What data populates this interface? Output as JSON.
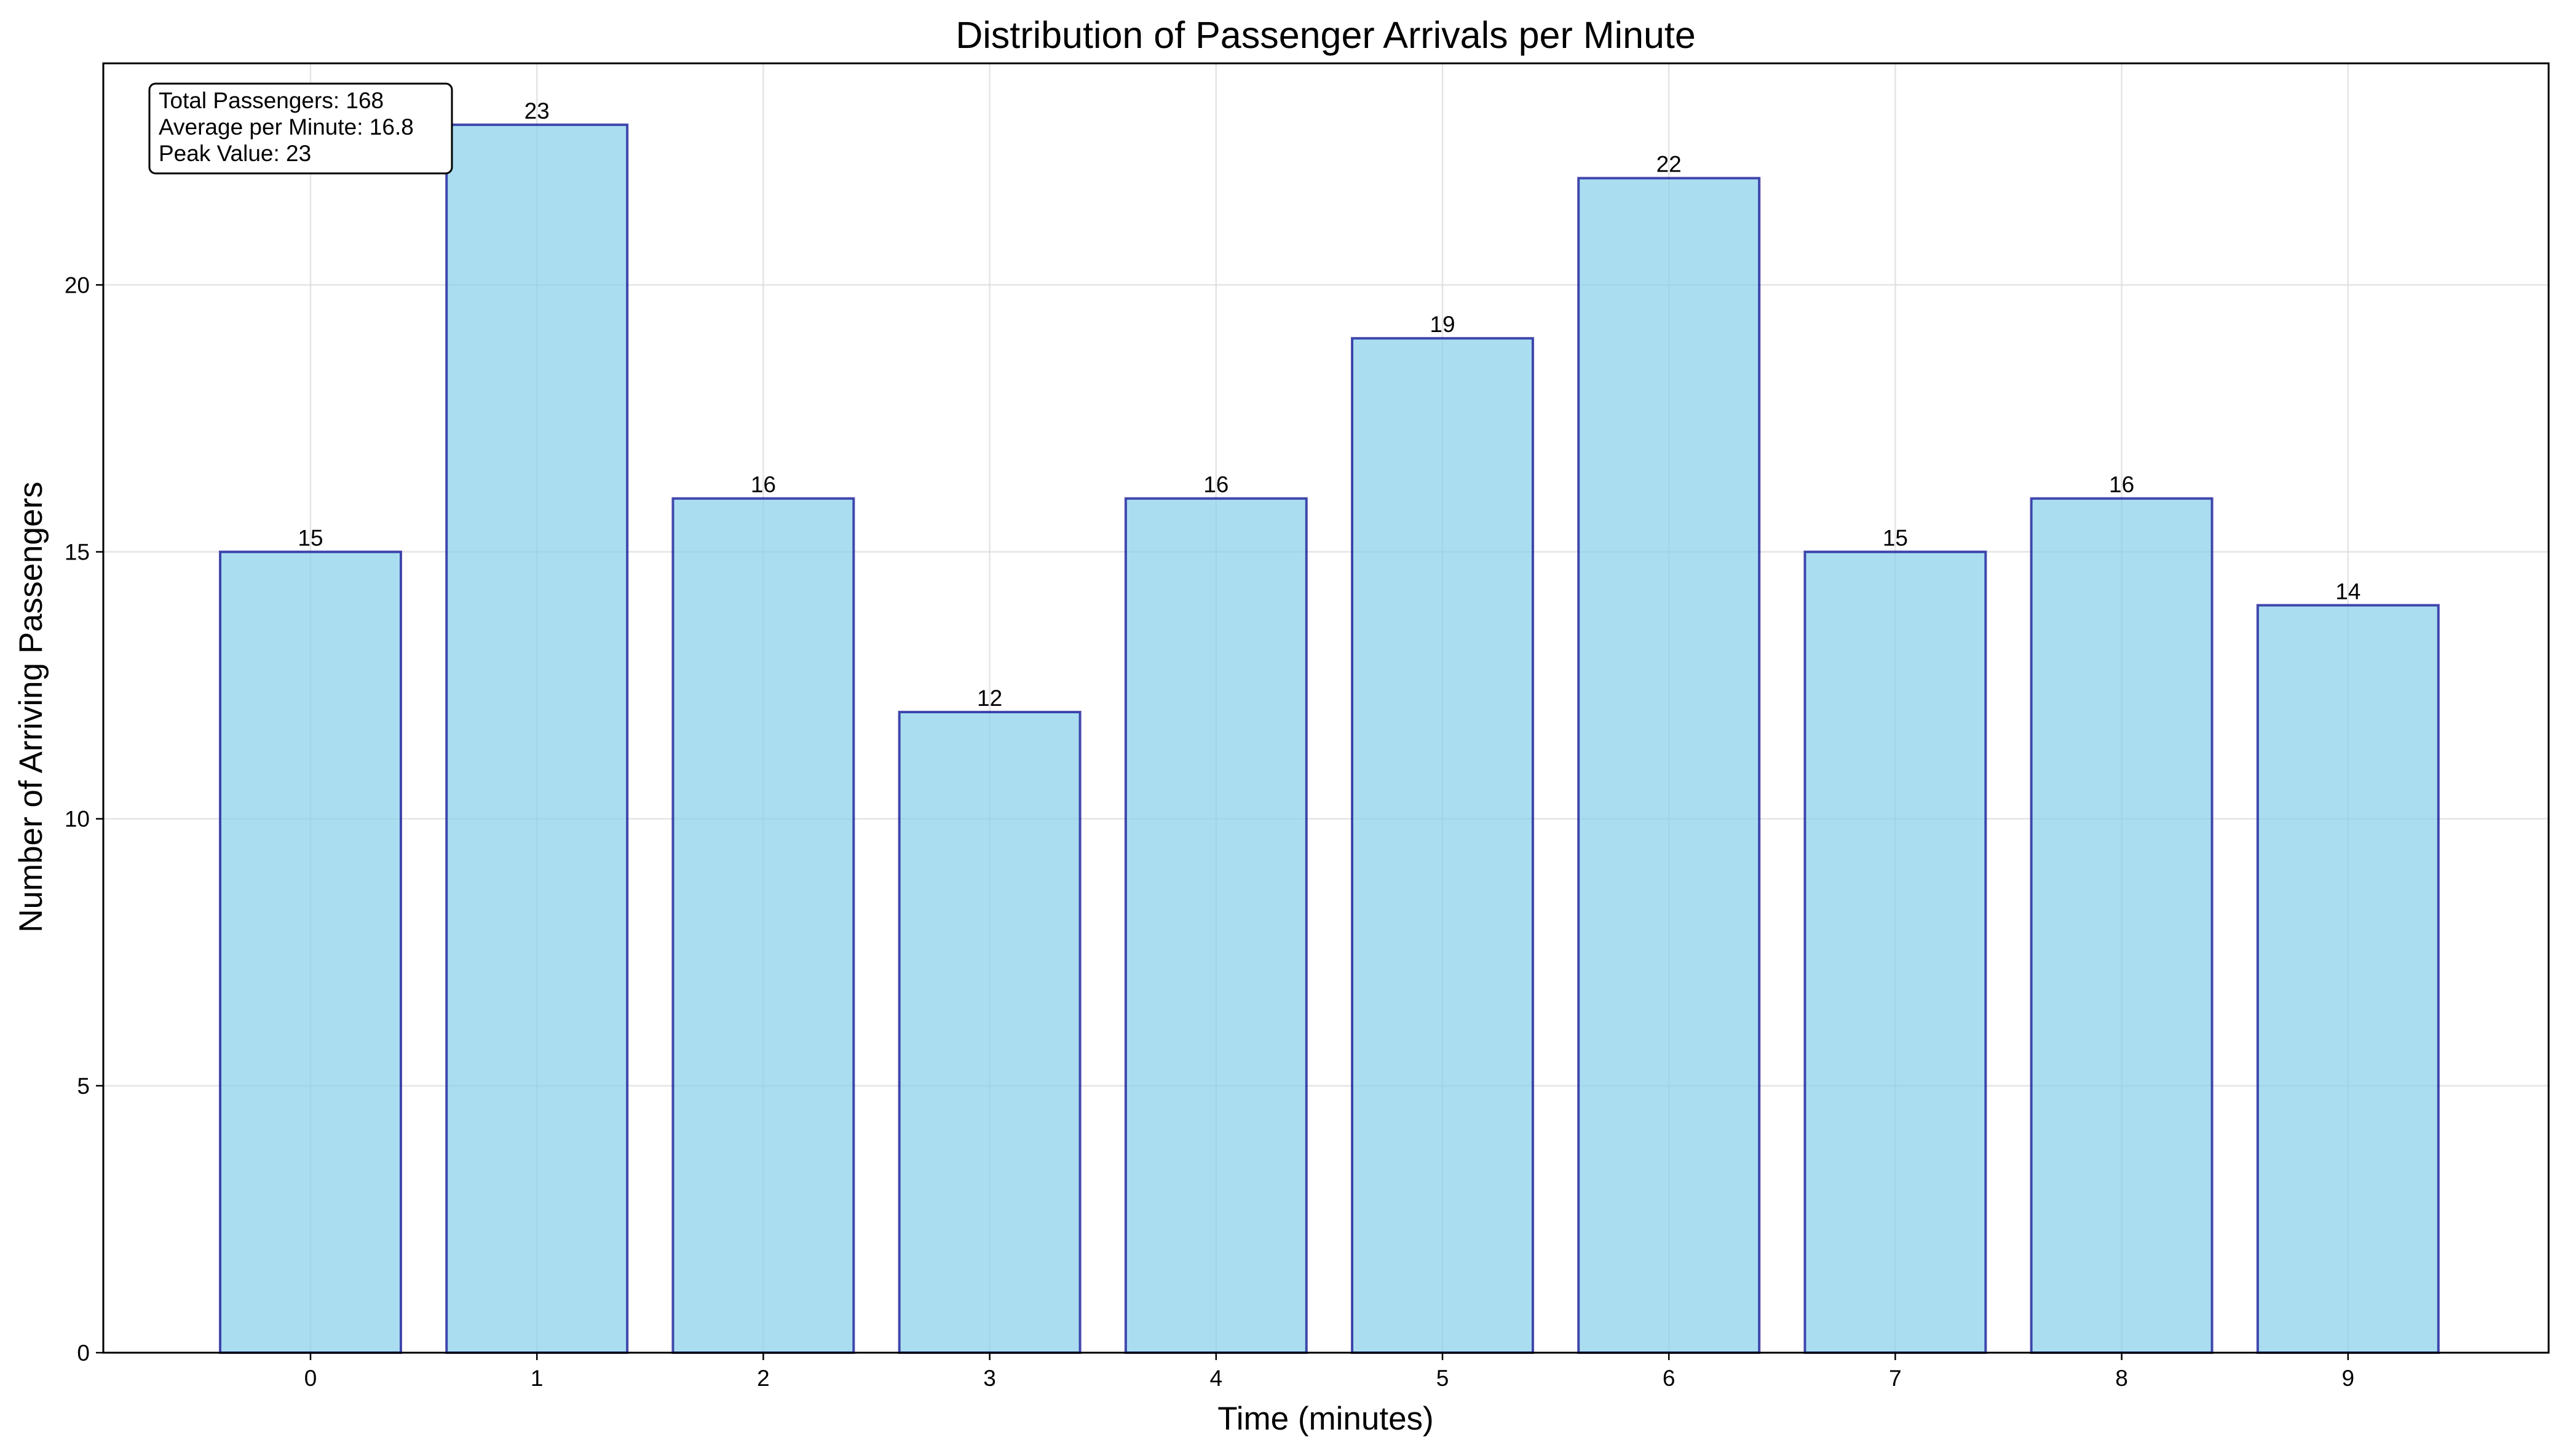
{
  "chart_data": {
    "type": "bar",
    "title": "Distribution of Passenger Arrivals per Minute",
    "xlabel": "Time (minutes)",
    "ylabel": "Number of Arriving Passengers",
    "categories": [
      "0",
      "1",
      "2",
      "3",
      "4",
      "5",
      "6",
      "7",
      "8",
      "9"
    ],
    "values": [
      15,
      23,
      16,
      12,
      16,
      19,
      22,
      15,
      16,
      14
    ],
    "ylim": [
      0,
      24.15
    ],
    "yticks": [
      0,
      5,
      10,
      15,
      20
    ],
    "grid": true,
    "bar_color": "#87ceeb",
    "bar_edge_color": "#00008b",
    "stats_box": {
      "lines": [
        "Total Passengers: 168",
        "Average per Minute: 16.8",
        "Peak Value: 23"
      ]
    }
  }
}
